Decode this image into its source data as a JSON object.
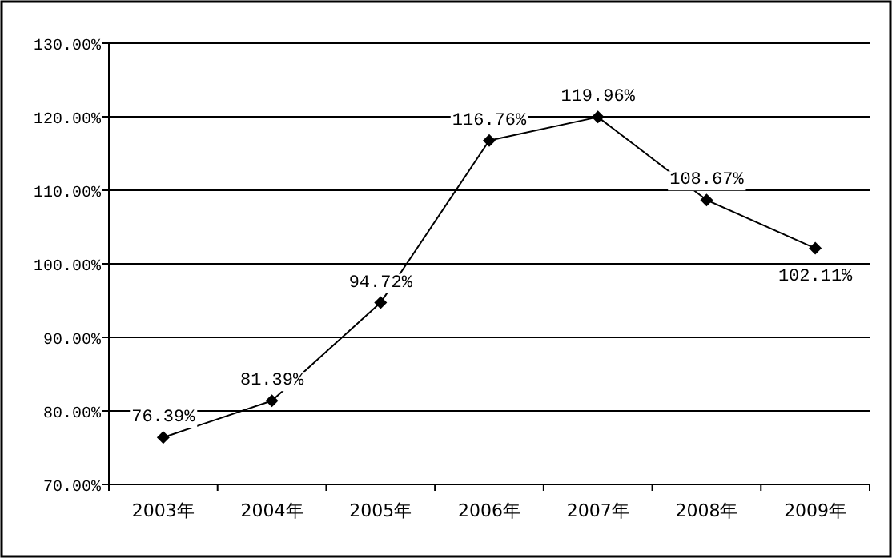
{
  "chart_data": {
    "type": "line",
    "categories": [
      "2003年",
      "2004年",
      "2005年",
      "2006年",
      "2007年",
      "2008年",
      "2009年"
    ],
    "series": [
      {
        "color": "#000000",
        "values": [
          76.39,
          81.39,
          94.72,
          116.76,
          119.96,
          108.67,
          102.11
        ],
        "value_labels": [
          "76.39%",
          "81.39%",
          "94.72%",
          "116.76%",
          "119.96%",
          "108.67%",
          "102.11%"
        ]
      }
    ],
    "ylim": [
      70,
      130
    ],
    "yticks": [
      {
        "value": 70,
        "label": "70.00%"
      },
      {
        "value": 80,
        "label": "80.00%"
      },
      {
        "value": 90,
        "label": "90.00%"
      },
      {
        "value": 100,
        "label": "100.00%"
      },
      {
        "value": 110,
        "label": "110.00%"
      },
      {
        "value": 120,
        "label": "120.00%"
      },
      {
        "value": 130,
        "label": "130.00%"
      }
    ],
    "grid": "y",
    "marker": "diamond",
    "line_style": "solid"
  }
}
